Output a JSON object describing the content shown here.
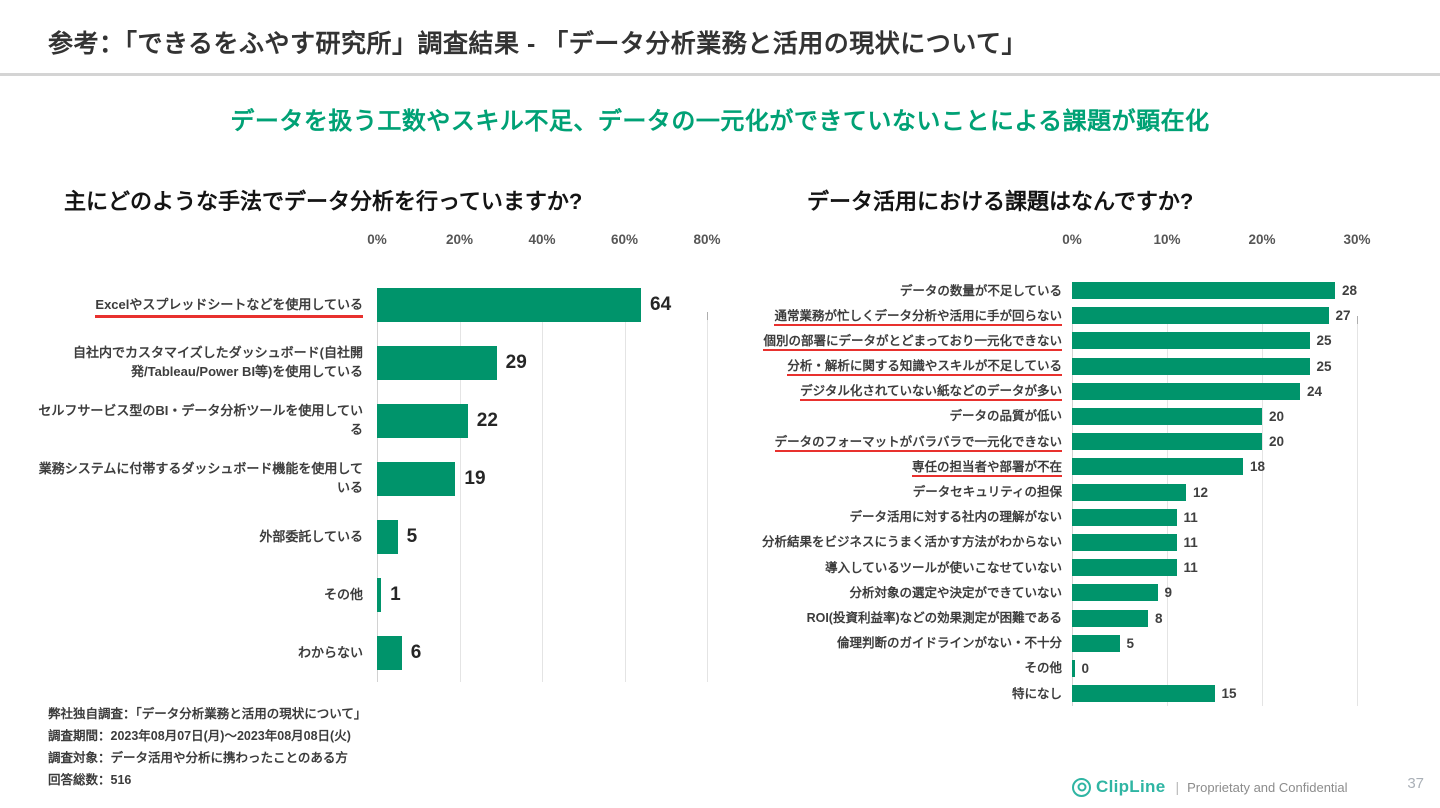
{
  "page": {
    "title": "参考：「できるをふやす研究所」調査結果 - 「データ分析業務と活用の現状について」",
    "subtitle": "データを扱う工数やスキル不足、データの一元化ができていないことによる課題が顕在化",
    "footnote": [
      "弊社独自調査：「データ分析業務と活用の現状について」",
      "調査期間：2023年08月07日(月)～2023年08月08日(火)",
      "調査対象：データ活用や分析に携わったことのある方",
      "回答総数：516"
    ],
    "footer": {
      "brand": "ClipLine",
      "separator": "|",
      "confidential": "Proprietaty and Confidential",
      "page_number": "37"
    }
  },
  "colors": {
    "bar_green": "#00946B",
    "subtitle_green": "#00A175",
    "underline_red": "#E8312E",
    "brand_teal": "#2FB5A3"
  },
  "chart_data": [
    {
      "type": "bar",
      "orientation": "horizontal",
      "title": "主にどのような手法でデータ分析を行っていますか?",
      "xlim": [
        0,
        80
      ],
      "x_ticks": [
        "0%",
        "20%",
        "40%",
        "60%",
        "80%"
      ],
      "grid": true,
      "categories": [
        "Excelやスプレッドシートなどを使用している",
        "自社内でカスタマイズしたダッシュボード(自社開発/Tableau/Power BI等)を使用している",
        "セルフサービス型のBI・データ分析ツールを使用している",
        "業務システムに付帯するダッシュボード機能を使用している",
        "外部委託している",
        "その他",
        "わからない"
      ],
      "values": [
        64,
        29,
        22,
        19,
        5,
        1,
        6
      ],
      "underlined": [
        true,
        false,
        false,
        false,
        false,
        false,
        false
      ]
    },
    {
      "type": "bar",
      "orientation": "horizontal",
      "title": "データ活用における課題はなんですか?",
      "xlim": [
        0,
        30
      ],
      "x_ticks": [
        "0%",
        "10%",
        "20%",
        "30%"
      ],
      "grid": true,
      "categories": [
        "データの数量が不足している",
        "通常業務が忙しくデータ分析や活用に手が回らない",
        "個別の部署にデータがとどまっており一元化できない",
        "分析・解析に関する知識やスキルが不足している",
        "デジタル化されていない紙などのデータが多い",
        "データの品質が低い",
        "データのフォーマットがバラバラで一元化できない",
        "専任の担当者や部署が不在",
        "データセキュリティの担保",
        "データ活用に対する社内の理解がない",
        "分析結果をビジネスにうまく活かす方法がわからない",
        "導入しているツールが使いこなせていない",
        "分析対象の選定や決定ができていない",
        "ROI(投資利益率)などの効果測定が困難である",
        "倫理判断のガイドラインがない・不十分",
        "その他",
        "特になし"
      ],
      "values": [
        28,
        27,
        25,
        25,
        24,
        20,
        20,
        18,
        12,
        11,
        11,
        11,
        9,
        8,
        5,
        0,
        15
      ],
      "underlined": [
        false,
        true,
        true,
        true,
        true,
        false,
        true,
        true,
        false,
        false,
        false,
        false,
        false,
        false,
        false,
        false,
        false
      ]
    }
  ]
}
